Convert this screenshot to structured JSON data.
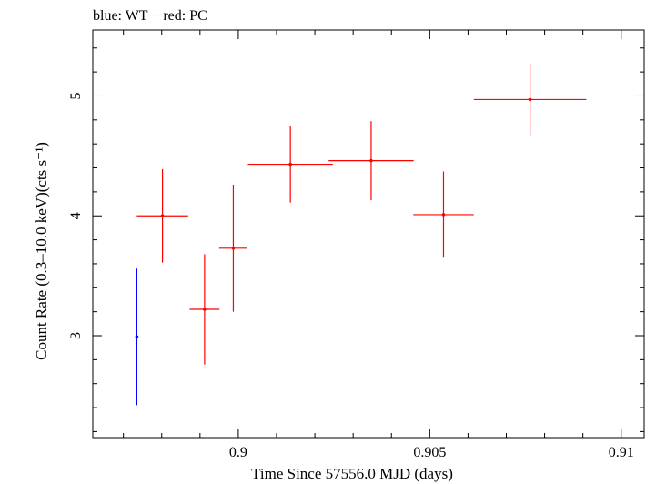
{
  "chart_data": {
    "type": "scatter",
    "title": "blue: WT − red: PC",
    "xlabel": "Time Since 57556.0 MJD (days)",
    "ylabel": "Count Rate (0.3–10.0 keV)(cts s⁻¹)",
    "xlim": [
      0.8962,
      0.9106
    ],
    "ylim": [
      2.15,
      5.55
    ],
    "x_ticks": [
      {
        "value": 0.9,
        "label": "0.9"
      },
      {
        "value": 0.905,
        "label": "0.905"
      },
      {
        "value": 0.91,
        "label": "0.91"
      }
    ],
    "y_ticks": [
      {
        "value": 3,
        "label": "3"
      },
      {
        "value": 4,
        "label": "4"
      },
      {
        "value": 5,
        "label": "5"
      }
    ],
    "series": [
      {
        "name": "WT",
        "color": "#0000ff",
        "points": [
          {
            "x": 0.89735,
            "xerr": 3e-05,
            "y": 2.99,
            "yerr": 0.57
          }
        ]
      },
      {
        "name": "PC",
        "color": "#ff0000",
        "points": [
          {
            "x": 0.89802,
            "xerr": 0.00067,
            "y": 4.0,
            "yerr": 0.39
          },
          {
            "x": 0.89912,
            "xerr": 0.00039,
            "y": 3.22,
            "yerr": 0.46
          },
          {
            "x": 0.89987,
            "xerr": 0.00037,
            "y": 3.73,
            "yerr": 0.53
          },
          {
            "x": 0.90136,
            "xerr": 0.00111,
            "y": 4.43,
            "yerr": 0.32
          },
          {
            "x": 0.90347,
            "xerr": 0.00111,
            "y": 4.46,
            "yerr": 0.33
          },
          {
            "x": 0.90536,
            "xerr": 0.00079,
            "y": 4.01,
            "yerr": 0.36
          },
          {
            "x": 0.90762,
            "xerr": 0.00147,
            "y": 4.97,
            "yerr": 0.3
          }
        ]
      }
    ]
  }
}
